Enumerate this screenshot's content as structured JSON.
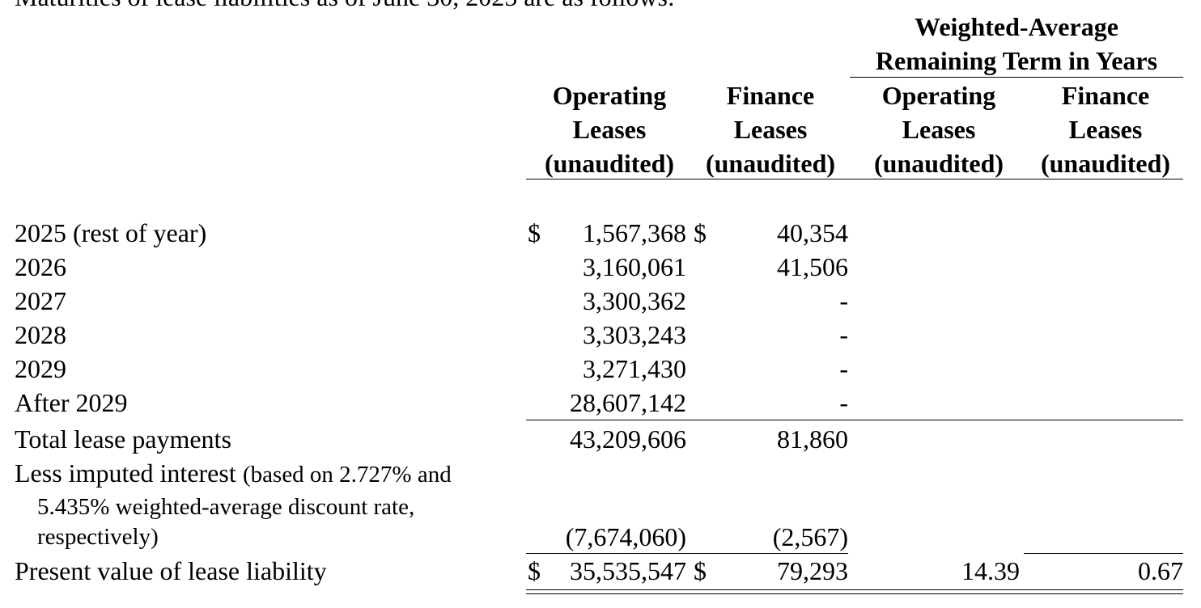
{
  "intro": "Maturities of lease liabilities as of June 30, 2025 are as follows:",
  "header": {
    "group": [
      "Weighted-Average",
      "Remaining Term in Years"
    ],
    "columns": [
      [
        "Operating",
        "Leases",
        "(unaudited)"
      ],
      [
        "Finance",
        "Leases",
        "(unaudited)"
      ],
      [
        "Operating",
        "Leases",
        "(unaudited)"
      ],
      [
        "Finance",
        "Leases",
        "(unaudited)"
      ]
    ]
  },
  "rows": [
    {
      "label": "2025 (rest of year)",
      "operating_prefix": "$",
      "operating": "1,567,368",
      "finance_prefix": "$",
      "finance": "40,354"
    },
    {
      "label": "2026",
      "operating": "3,160,061",
      "finance": "41,506"
    },
    {
      "label": "2027",
      "operating": "3,300,362",
      "finance": "-"
    },
    {
      "label": "2028",
      "operating": "3,303,243",
      "finance": "-"
    },
    {
      "label": "2029",
      "operating": "3,271,430",
      "finance": "-"
    },
    {
      "label": "After 2029",
      "operating": "28,607,142",
      "finance": "-"
    },
    {
      "label": "Total lease payments",
      "operating": "43,209,606",
      "finance": "81,860"
    },
    {
      "label": "Less imputed interest",
      "note": [
        "(based on 2.727% and",
        "5.435% weighted-average discount rate,",
        "respectively)"
      ],
      "operating": "(7,674,060)",
      "finance": "(2,567)"
    },
    {
      "label": "Present value of lease liability",
      "operating_prefix": "$",
      "operating": "35,535,547",
      "finance_prefix": "$",
      "finance": "79,293",
      "wa_operating": "14.39",
      "wa_finance": "0.67"
    }
  ]
}
